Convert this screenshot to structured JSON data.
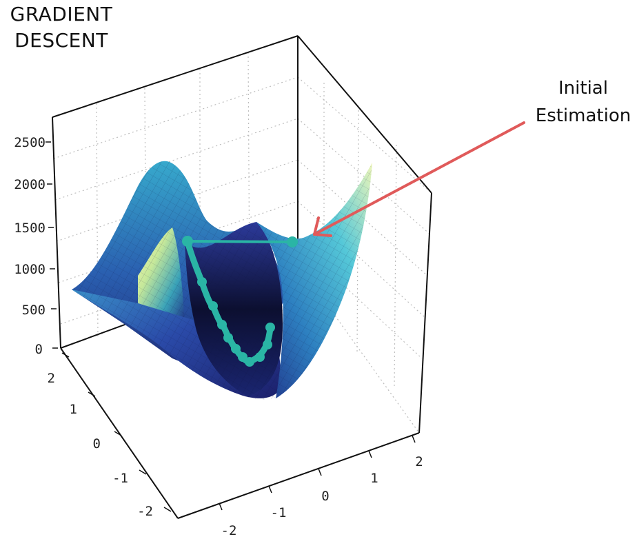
{
  "figure": {
    "title_lines": [
      "GRADIENT",
      "DESCENT"
    ],
    "annotation_lines": [
      "Initial",
      "Estimation"
    ],
    "annotation_arrow_color": "#e05a5a"
  },
  "chart_data": {
    "type": "surface",
    "z_ticks": [
      "0",
      "500",
      "1000",
      "1500",
      "2000",
      "2500"
    ],
    "y_ticks": [
      "-2",
      "-1",
      "0",
      "1",
      "2"
    ],
    "x_ticks": [
      "-2",
      "-1",
      "0",
      "1",
      "2"
    ],
    "zlim": [
      0,
      2800
    ],
    "xlim": [
      -2,
      2
    ],
    "ylim": [
      -2,
      2
    ],
    "grid": true,
    "colormap": "YlGnBu",
    "colors": {
      "path": "#2ab5a5",
      "surface_low": "#1a1a4e",
      "surface_mid": "#2a5fb0",
      "surface_high": "#f2f5a8"
    }
  }
}
